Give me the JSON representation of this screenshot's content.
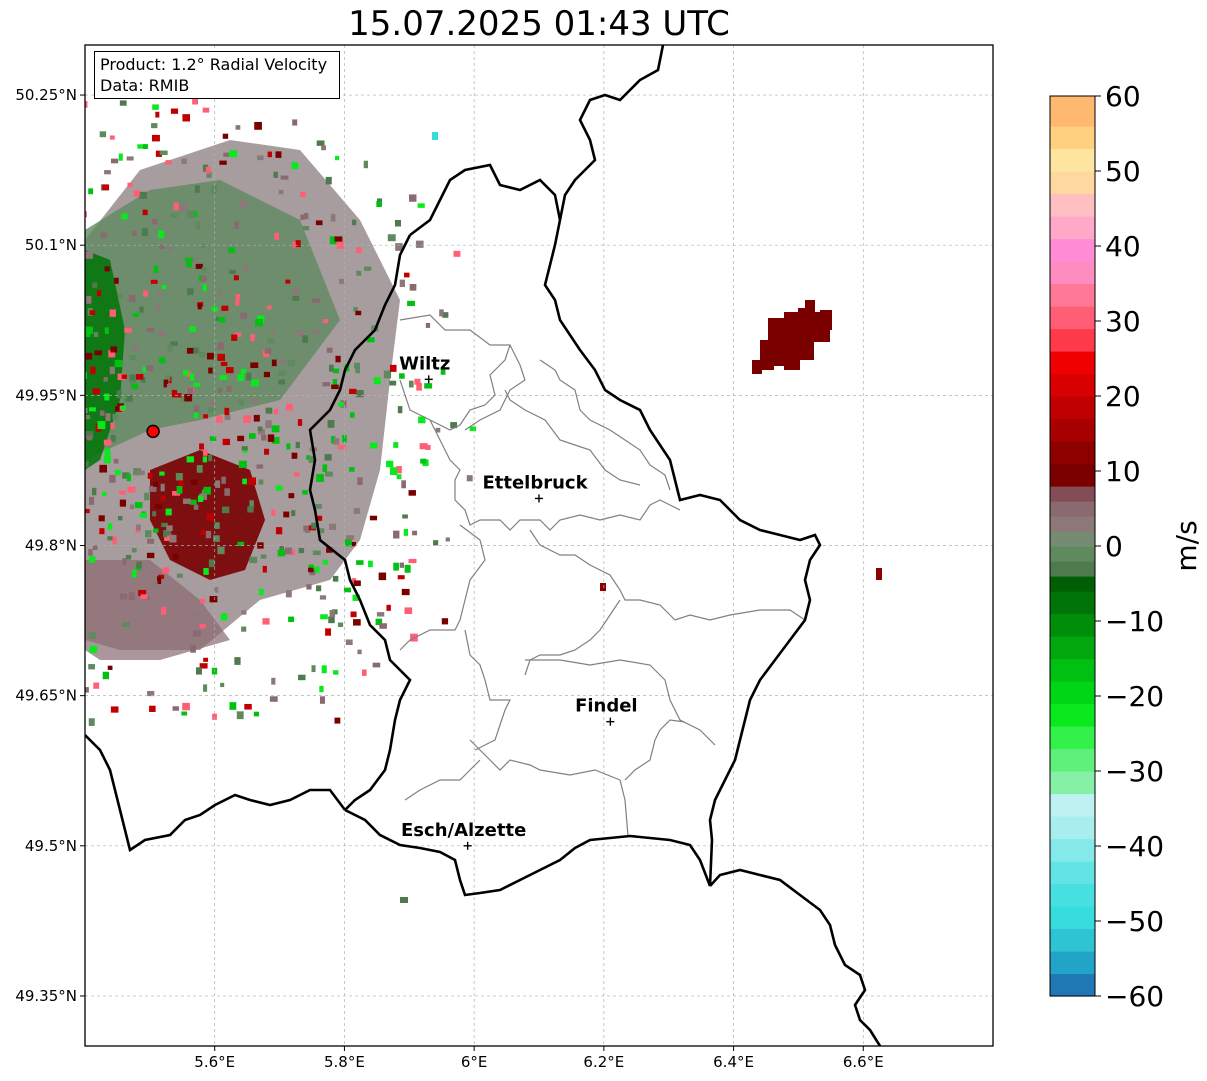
{
  "title": "15.07.2025 01:43 UTC",
  "info": {
    "product": "Product: 1.2° Radial Velocity",
    "data": "Data: RMIB"
  },
  "axes": {
    "lat_ticks": [
      "50.25°N",
      "50.1°N",
      "49.95°N",
      "49.8°N",
      "49.65°N",
      "49.5°N",
      "49.35°N"
    ],
    "lon_ticks": [
      "5.6°E",
      "5.8°E",
      "6°E",
      "6.2°E",
      "6.4°E",
      "6.6°E"
    ],
    "lat_values": [
      50.25,
      50.1,
      49.95,
      49.8,
      49.65,
      49.5,
      49.35
    ],
    "lon_values": [
      5.6,
      5.8,
      6.0,
      6.2,
      6.4,
      6.6
    ],
    "lon_range": [
      5.4,
      6.8
    ],
    "lat_range": [
      49.3,
      50.3
    ],
    "grid": true
  },
  "cities": [
    {
      "name": "Wiltz",
      "lon": 5.93,
      "lat": 49.966
    },
    {
      "name": "Ettelbruck",
      "lon": 6.1,
      "lat": 49.847
    },
    {
      "name": "Findel",
      "lon": 6.21,
      "lat": 49.624
    },
    {
      "name": "Esch/Alzette",
      "lon": 5.99,
      "lat": 49.5
    }
  ],
  "radar_site": {
    "lon": 5.505,
    "lat": 49.914,
    "color": "#ff0000"
  },
  "colorbar": {
    "label": "m/s",
    "min": -60,
    "max": 60,
    "ticks": [
      "60",
      "50",
      "40",
      "30",
      "20",
      "10",
      "0",
      "−10",
      "−20",
      "−30",
      "−40",
      "−50",
      "−60"
    ],
    "tick_values": [
      60,
      50,
      40,
      30,
      20,
      10,
      0,
      -10,
      -20,
      -30,
      -40,
      -50,
      -60
    ],
    "stops": [
      {
        "v": -60,
        "c": "#1f77b4"
      },
      {
        "v": -57,
        "c": "#22a4c9"
      },
      {
        "v": -54,
        "c": "#2ec4d4"
      },
      {
        "v": -51,
        "c": "#37dcdc"
      },
      {
        "v": -48,
        "c": "#46e0e0"
      },
      {
        "v": -45,
        "c": "#62e4e4"
      },
      {
        "v": -42,
        "c": "#86e9e9"
      },
      {
        "v": -39,
        "c": "#a8eeee"
      },
      {
        "v": -36,
        "c": "#bef2f2"
      },
      {
        "v": -33,
        "c": "#86f0a6"
      },
      {
        "v": -30,
        "c": "#5ef07a"
      },
      {
        "v": -27,
        "c": "#33f04a"
      },
      {
        "v": -24,
        "c": "#0ae81e"
      },
      {
        "v": -21,
        "c": "#00d616"
      },
      {
        "v": -18,
        "c": "#00c012"
      },
      {
        "v": -15,
        "c": "#00a80e"
      },
      {
        "v": -12,
        "c": "#008e0a"
      },
      {
        "v": -9,
        "c": "#007406"
      },
      {
        "v": -6,
        "c": "#005e04"
      },
      {
        "v": -4,
        "c": "#4e7a4e"
      },
      {
        "v": -2,
        "c": "#5e8a5e"
      },
      {
        "v": 0,
        "c": "#768c72"
      },
      {
        "v": 2,
        "c": "#8c7878"
      },
      {
        "v": 4,
        "c": "#8a6a70"
      },
      {
        "v": 6,
        "c": "#834d55"
      },
      {
        "v": 8,
        "c": "#7a0000"
      },
      {
        "v": 11,
        "c": "#8c0000"
      },
      {
        "v": 14,
        "c": "#a80000"
      },
      {
        "v": 17,
        "c": "#c00000"
      },
      {
        "v": 20,
        "c": "#d80000"
      },
      {
        "v": 23,
        "c": "#f00000"
      },
      {
        "v": 26,
        "c": "#ff3a4a"
      },
      {
        "v": 29,
        "c": "#ff5e74"
      },
      {
        "v": 32,
        "c": "#ff7896"
      },
      {
        "v": 35,
        "c": "#ff8cbe"
      },
      {
        "v": 38,
        "c": "#ff8cd4"
      },
      {
        "v": 41,
        "c": "#ffa8c8"
      },
      {
        "v": 44,
        "c": "#ffbfc0"
      },
      {
        "v": 47,
        "c": "#ffd8a0"
      },
      {
        "v": 50,
        "c": "#ffe6a0"
      },
      {
        "v": 53,
        "c": "#ffd080"
      },
      {
        "v": 56,
        "c": "#ffb870"
      },
      {
        "v": 60,
        "c": "#ffa05a"
      }
    ]
  },
  "colors": {
    "border_country": "#000000",
    "border_canton": "#808080",
    "grid": "#b0b0b0"
  }
}
